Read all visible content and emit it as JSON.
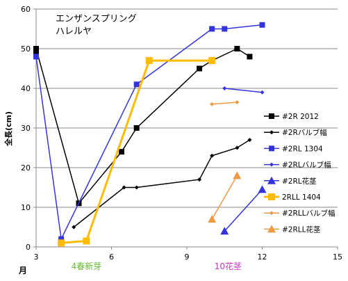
{
  "chart_data": {
    "type": "line",
    "title_lines": [
      "エンザンスプリング",
      "ハレルヤ"
    ],
    "xlabel": "月",
    "ylabel": "全長(cm)",
    "xlim": [
      3,
      15
    ],
    "ylim": [
      0,
      60
    ],
    "x_ticks": [
      3,
      6,
      9,
      12,
      15
    ],
    "y_ticks": [
      0,
      10,
      20,
      30,
      40,
      50,
      60
    ],
    "grid": "horizontal",
    "legend_position": "right",
    "annotations": [
      {
        "text": "4春新芽",
        "x": 4.4,
        "color": "#66bb33"
      },
      {
        "text": "10花茎",
        "x": 10.1,
        "color": "#cc33cc"
      }
    ],
    "series": [
      {
        "name": "#2R 2012",
        "color": "#000000",
        "marker": "square",
        "width": 1.5,
        "points": [
          [
            3,
            49
          ],
          [
            3,
            50
          ],
          [
            4.7,
            11
          ],
          [
            6.4,
            24
          ],
          [
            7,
            30
          ],
          [
            9.5,
            45
          ],
          [
            10,
            47
          ],
          [
            11,
            50
          ],
          [
            11.5,
            48
          ]
        ]
      },
      {
        "name": "#2Rバルブ幅",
        "color": "#000000",
        "marker": "diamond",
        "width": 1.5,
        "points": [
          [
            4.5,
            5
          ],
          [
            6.5,
            15
          ],
          [
            7,
            15
          ],
          [
            9.5,
            17
          ],
          [
            10,
            23
          ],
          [
            11,
            25
          ],
          [
            11.5,
            27
          ]
        ]
      },
      {
        "name": "#2RL 1304",
        "color": "#3333dd",
        "marker": "square",
        "width": 1.5,
        "points": [
          [
            3,
            48
          ],
          [
            4,
            2
          ],
          [
            7,
            41
          ],
          [
            10,
            55
          ],
          [
            10.5,
            55
          ],
          [
            12,
            56
          ]
        ]
      },
      {
        "name": "#2RLバルブ幅",
        "color": "#3333dd",
        "marker": "diamond",
        "width": 1.5,
        "points": [
          [
            10.5,
            40
          ],
          [
            12,
            39
          ]
        ]
      },
      {
        "name": "#2RL花茎",
        "color": "#3333dd",
        "marker": "triangle",
        "width": 1.5,
        "points": [
          [
            10.5,
            4
          ],
          [
            12,
            14.5
          ]
        ]
      },
      {
        "name": "2RLL 1404",
        "color": "#ffbb00",
        "marker": "square",
        "width": 3,
        "points": [
          [
            4,
            1
          ],
          [
            5,
            1.5
          ],
          [
            7.5,
            47
          ],
          [
            10,
            47
          ]
        ]
      },
      {
        "name": "#2RLLバルブ幅",
        "color": "#ee9944",
        "marker": "diamond",
        "width": 1.5,
        "points": [
          [
            10,
            36
          ],
          [
            11,
            36.5
          ]
        ]
      },
      {
        "name": "#2RLL花茎",
        "color": "#ee9944",
        "marker": "triangle",
        "width": 1.5,
        "points": [
          [
            10,
            7
          ],
          [
            11,
            18
          ]
        ]
      }
    ]
  }
}
